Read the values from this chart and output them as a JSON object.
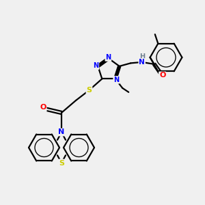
{
  "background_color": "#f0f0f0",
  "atom_colors": {
    "N": "#0000ff",
    "S": "#cccc00",
    "O": "#ff0000",
    "C": "#000000",
    "H": "#708090"
  },
  "bond_color": "#000000",
  "bond_width": 1.6,
  "fig_width": 3.0,
  "fig_height": 3.0,
  "dpi": 100
}
